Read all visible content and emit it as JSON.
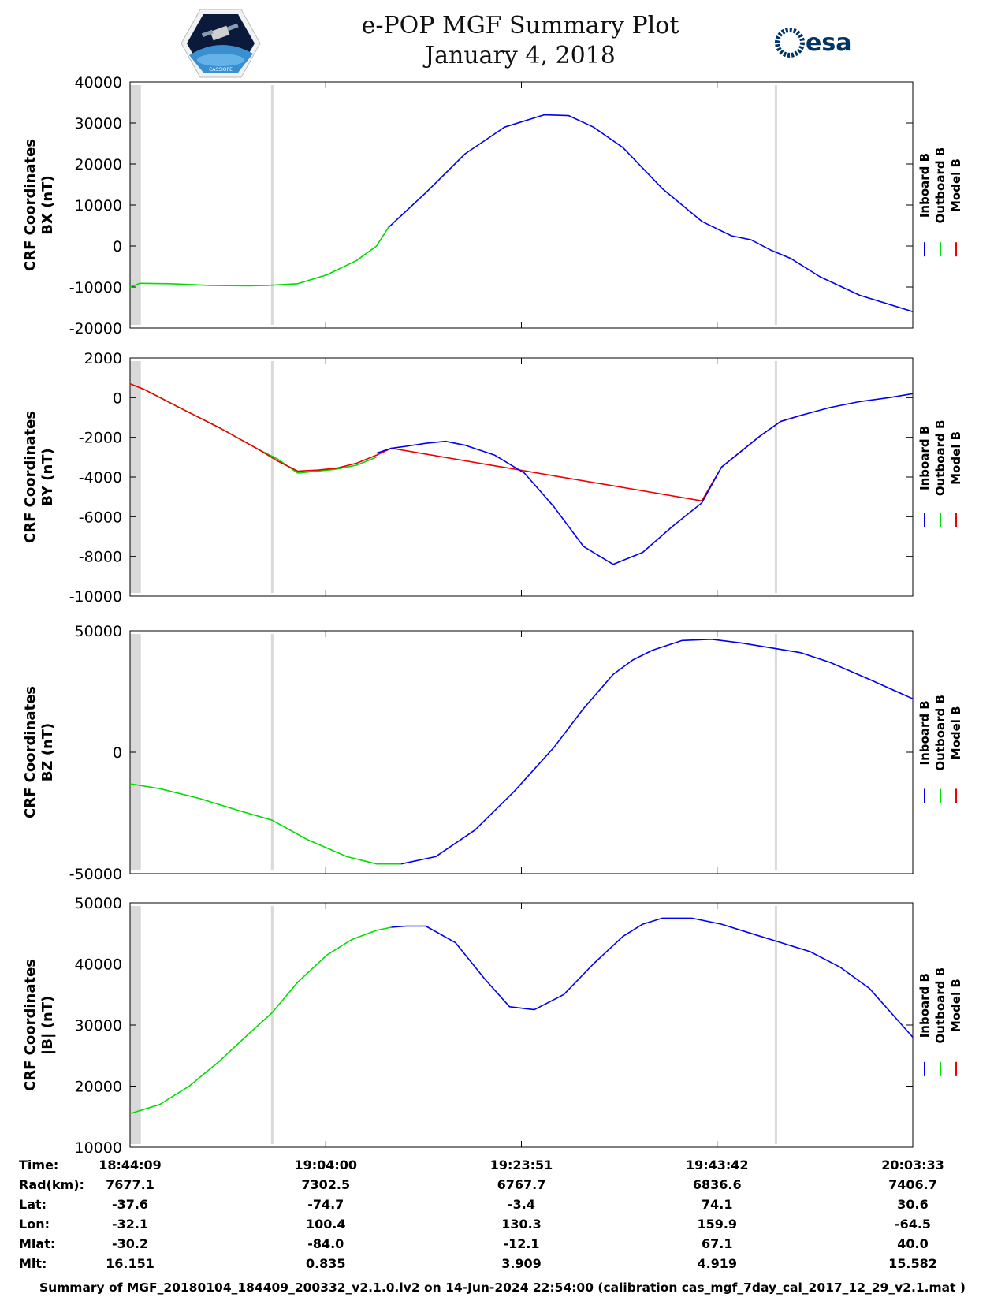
{
  "header": {
    "title_line1": "e-POP MGF Summary Plot",
    "title_line2": "January 4, 2018",
    "logo_left": "cassiope-mission-logo",
    "logo_right_text": "esa",
    "logo_left_text": "CASSIOPE"
  },
  "legend": [
    "Inboard B",
    "Outboard B",
    "Model B"
  ],
  "colors": {
    "inboard": "#0000ee",
    "outboard": "#00dd00",
    "model": "#ee0000",
    "gap": "#d9d9d9"
  },
  "time_axis": {
    "ticks": [
      "18:44:09",
      "19:04:00",
      "19:23:51",
      "19:43:42",
      "20:03:33"
    ],
    "gaps": [
      {
        "start_min": 0.0,
        "end_min": 1.1
      },
      {
        "start_min": 14.3,
        "end_min": 14.5
      },
      {
        "start_min": 65.4,
        "end_min": 65.6
      }
    ]
  },
  "chart_data": [
    {
      "type": "line",
      "name": "bx",
      "ylabel": [
        "CRF Coordinates",
        "BX (nT)"
      ],
      "ylim": [
        -20000,
        40000
      ],
      "yticks": [
        -20000,
        -10000,
        0,
        10000,
        20000,
        30000,
        40000
      ],
      "xlim_min": [
        0,
        79.4
      ],
      "series": [
        {
          "name": "Outboard B",
          "x": [
            0,
            1,
            4,
            8,
            12,
            14,
            17,
            20,
            23,
            25,
            26.2
          ],
          "y": [
            -10000,
            -9100,
            -9200,
            -9600,
            -9700,
            -9600,
            -9200,
            -7000,
            -3500,
            0,
            4500
          ]
        },
        {
          "name": "Inboard B",
          "x": [
            26.2,
            30,
            34,
            38,
            42,
            44.5,
            47,
            50,
            54,
            58,
            61,
            63,
            65,
            67,
            70,
            74,
            79.4
          ],
          "y": [
            4500,
            13000,
            22500,
            29000,
            32000,
            31800,
            29000,
            24000,
            14000,
            6000,
            2500,
            1500,
            -1000,
            -3000,
            -7500,
            -12000,
            -16000
          ]
        }
      ]
    },
    {
      "type": "line",
      "name": "by",
      "ylabel": [
        "CRF Coordinates",
        "BY (nT)"
      ],
      "ylim": [
        -10000,
        2000
      ],
      "yticks": [
        -10000,
        -8000,
        -6000,
        -4000,
        -2000,
        0,
        2000
      ],
      "xlim_min": [
        0,
        79.4
      ],
      "series": [
        {
          "name": "Outboard B",
          "x": [
            0,
            1.5,
            5,
            9,
            13,
            15,
            17,
            19,
            21,
            23,
            25
          ],
          "y": [
            700,
            400,
            -500,
            -1500,
            -2600,
            -3100,
            -3800,
            -3700,
            -3600,
            -3400,
            -3000
          ]
        },
        {
          "name": "Model B",
          "x": [
            0,
            1.5,
            5,
            9,
            13,
            15,
            17,
            19,
            21,
            23,
            25,
            26.5,
            58,
            60,
            62,
            64,
            66,
            68
          ],
          "y": [
            700,
            400,
            -500,
            -1500,
            -2600,
            -3200,
            -3700,
            -3650,
            -3550,
            -3300,
            -2900,
            -2550,
            -5200,
            -3500,
            -2700,
            -1900,
            -1200,
            -900
          ]
        },
        {
          "name": "Inboard B",
          "x": [
            25,
            26.5,
            28,
            30,
            32,
            34,
            37,
            40,
            43,
            46,
            49,
            52,
            55,
            58,
            60,
            62,
            64,
            66,
            68,
            71,
            74,
            77,
            79.4
          ],
          "y": [
            -2800,
            -2550,
            -2450,
            -2300,
            -2200,
            -2400,
            -2900,
            -3800,
            -5500,
            -7500,
            -8400,
            -7800,
            -6500,
            -5300,
            -3500,
            -2700,
            -1900,
            -1200,
            -900,
            -500,
            -200,
            0,
            200
          ]
        }
      ]
    },
    {
      "type": "line",
      "name": "bz",
      "ylabel": [
        "CRF Coordinates",
        "BZ (nT)"
      ],
      "ylim": [
        -50000,
        50000
      ],
      "yticks": [
        -50000,
        0,
        50000
      ],
      "xlim_min": [
        0,
        79.4
      ],
      "series": [
        {
          "name": "Outboard B",
          "x": [
            0,
            3,
            7,
            11,
            14.4,
            18,
            22,
            25,
            27.5
          ],
          "y": [
            -13000,
            -15000,
            -19000,
            -24000,
            -28000,
            -36000,
            -43000,
            -46000,
            -46000
          ]
        },
        {
          "name": "Inboard B",
          "x": [
            27.5,
            31,
            35,
            39,
            43,
            46,
            49,
            51,
            53,
            56,
            59,
            62,
            65,
            68,
            71,
            75,
            79.4
          ],
          "y": [
            -46000,
            -43000,
            -32000,
            -16000,
            2000,
            18000,
            32000,
            38000,
            42000,
            46000,
            46500,
            45000,
            43000,
            41000,
            37000,
            30000,
            22000
          ]
        }
      ]
    },
    {
      "type": "line",
      "name": "btotal",
      "ylabel": [
        "CRF Coordinates",
        "|B| (nT)"
      ],
      "ylim": [
        10000,
        50000
      ],
      "yticks": [
        10000,
        20000,
        30000,
        40000,
        50000
      ],
      "xlim_min": [
        0,
        79.4
      ],
      "series": [
        {
          "name": "Outboard B",
          "x": [
            0,
            3,
            6,
            9,
            12,
            14.4,
            17,
            20,
            22.5,
            25,
            26.5
          ],
          "y": [
            15500,
            17000,
            20000,
            24000,
            28500,
            32000,
            37000,
            41500,
            44000,
            45500,
            46000
          ]
        },
        {
          "name": "Inboard B",
          "x": [
            26.5,
            28,
            30,
            33,
            36,
            38.5,
            41,
            44,
            47,
            50,
            52,
            54,
            57,
            60,
            63,
            66,
            69,
            72,
            75,
            79.4
          ],
          "y": [
            46000,
            46200,
            46200,
            43500,
            37500,
            33000,
            32500,
            35000,
            40000,
            44500,
            46500,
            47500,
            47500,
            46500,
            45000,
            43500,
            42000,
            39500,
            36000,
            28000
          ]
        }
      ]
    }
  ],
  "info_table": {
    "rows": [
      {
        "label": "Time:",
        "values": [
          "18:44:09",
          "19:04:00",
          "19:23:51",
          "19:43:42",
          "20:03:33"
        ]
      },
      {
        "label": "Rad(km):",
        "values": [
          "7677.1",
          "7302.5",
          "6767.7",
          "6836.6",
          "7406.7"
        ]
      },
      {
        "label": "Lat:",
        "values": [
          "-37.6",
          "-74.7",
          "-3.4",
          "74.1",
          "30.6"
        ]
      },
      {
        "label": "Lon:",
        "values": [
          "-32.1",
          "100.4",
          "130.3",
          "159.9",
          "-64.5"
        ]
      },
      {
        "label": "Mlat:",
        "values": [
          "-30.2",
          "-84.0",
          "-12.1",
          "67.1",
          "40.0"
        ]
      },
      {
        "label": "Mlt:",
        "values": [
          "16.151",
          "0.835",
          "3.909",
          "4.919",
          "15.582"
        ]
      }
    ]
  },
  "footer": "Summary of MGF_20180104_184409_200332_v2.1.0.lv2 on 14-Jun-2024 22:54:00 (calibration cas_mgf_7day_cal_2017_12_29_v2.1.mat )"
}
